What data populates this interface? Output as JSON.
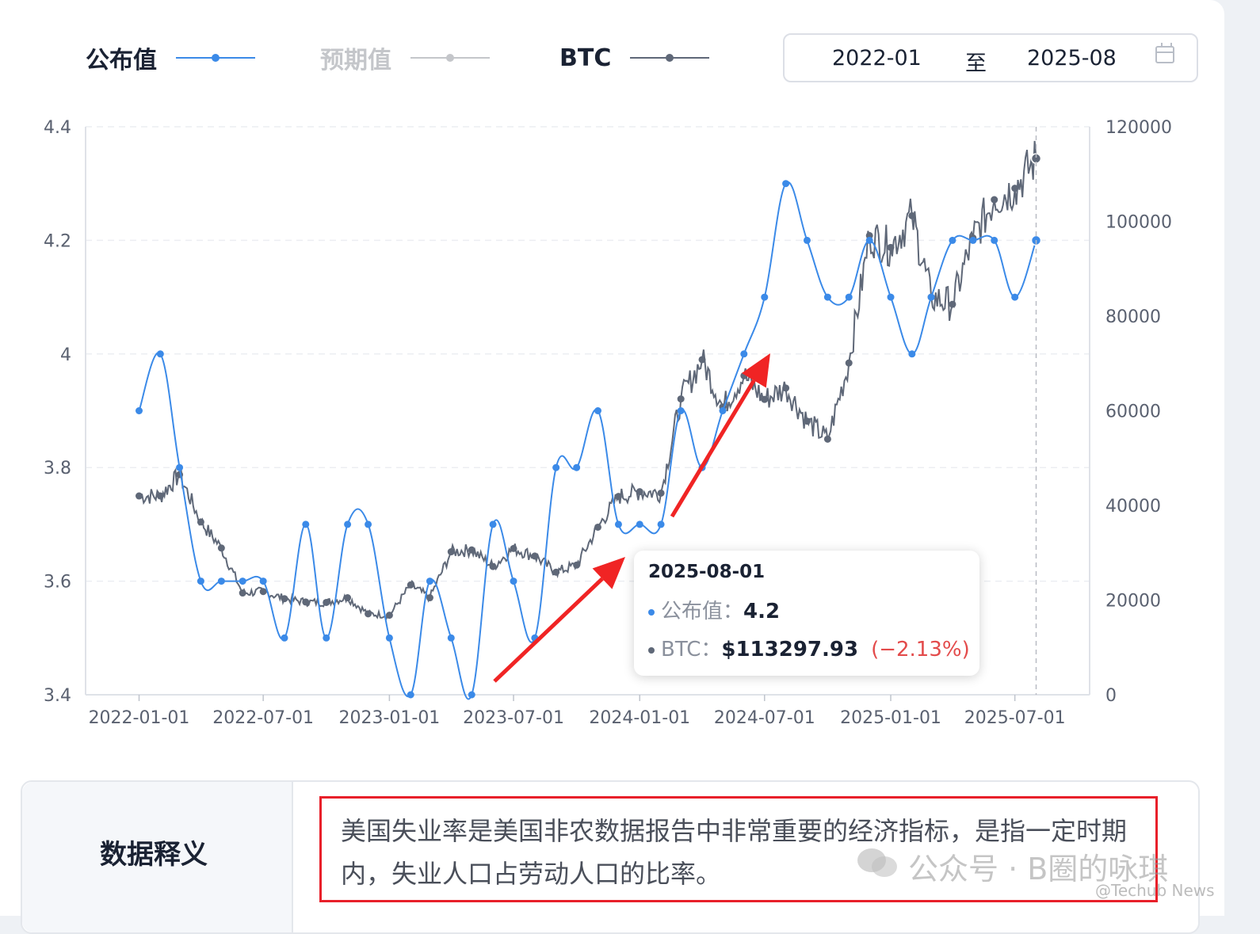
{
  "legend": {
    "published": {
      "label": "公布值",
      "color": "#3b8ae8"
    },
    "expected": {
      "label": "预期值",
      "color": "#c4c6ca"
    },
    "btc": {
      "label": "BTC",
      "color": "#5f6878"
    }
  },
  "date_range": {
    "start": "2022-01",
    "separator": "至",
    "end": "2025-08"
  },
  "chart_data": {
    "type": "line",
    "x_ticks": [
      "2022-01-01",
      "2022-07-01",
      "2023-01-01",
      "2023-07-01",
      "2024-01-01",
      "2024-07-01",
      "2025-01-01",
      "2025-07-01"
    ],
    "y_left": {
      "ticks": [
        "4.4",
        "4.2",
        "4",
        "3.8",
        "3.6",
        "3.4"
      ],
      "range": [
        3.4,
        4.4
      ]
    },
    "y_right": {
      "ticks": [
        "120000",
        "100000",
        "80000",
        "60000",
        "40000",
        "20000",
        "0"
      ],
      "range": [
        0,
        120000
      ]
    },
    "series": [
      {
        "name": "公布值",
        "axis": "left",
        "points": [
          [
            "2022-01-01",
            3.9
          ],
          [
            "2022-02-01",
            4.0
          ],
          [
            "2022-03-01",
            3.8
          ],
          [
            "2022-04-01",
            3.6
          ],
          [
            "2022-05-01",
            3.6
          ],
          [
            "2022-06-01",
            3.6
          ],
          [
            "2022-07-01",
            3.6
          ],
          [
            "2022-08-01",
            3.5
          ],
          [
            "2022-09-01",
            3.7
          ],
          [
            "2022-10-01",
            3.5
          ],
          [
            "2022-11-01",
            3.7
          ],
          [
            "2022-12-01",
            3.7
          ],
          [
            "2023-01-01",
            3.5
          ],
          [
            "2023-02-01",
            3.4
          ],
          [
            "2023-03-01",
            3.6
          ],
          [
            "2023-04-01",
            3.5
          ],
          [
            "2023-05-01",
            3.4
          ],
          [
            "2023-06-01",
            3.7
          ],
          [
            "2023-07-01",
            3.6
          ],
          [
            "2023-08-01",
            3.5
          ],
          [
            "2023-09-01",
            3.8
          ],
          [
            "2023-10-01",
            3.8
          ],
          [
            "2023-11-01",
            3.9
          ],
          [
            "2023-12-01",
            3.7
          ],
          [
            "2024-01-01",
            3.7
          ],
          [
            "2024-02-01",
            3.7
          ],
          [
            "2024-03-01",
            3.9
          ],
          [
            "2024-04-01",
            3.8
          ],
          [
            "2024-05-01",
            3.9
          ],
          [
            "2024-06-01",
            4.0
          ],
          [
            "2024-07-01",
            4.1
          ],
          [
            "2024-08-01",
            4.3
          ],
          [
            "2024-09-01",
            4.2
          ],
          [
            "2024-10-01",
            4.1
          ],
          [
            "2024-11-01",
            4.1
          ],
          [
            "2024-12-01",
            4.2
          ],
          [
            "2025-01-01",
            4.1
          ],
          [
            "2025-02-01",
            4.0
          ],
          [
            "2025-03-01",
            4.1
          ],
          [
            "2025-04-01",
            4.2
          ],
          [
            "2025-05-01",
            4.2
          ],
          [
            "2025-06-01",
            4.2
          ],
          [
            "2025-07-01",
            4.1
          ],
          [
            "2025-08-01",
            4.2
          ]
        ]
      },
      {
        "name": "BTC",
        "axis": "right",
        "points": [
          [
            "2022-01-01",
            42000
          ],
          [
            "2022-02-01",
            42000
          ],
          [
            "2022-03-01",
            46500
          ],
          [
            "2022-04-01",
            36500
          ],
          [
            "2022-05-01",
            31000
          ],
          [
            "2022-06-01",
            21500
          ],
          [
            "2022-07-01",
            21800
          ],
          [
            "2022-08-01",
            20300
          ],
          [
            "2022-09-01",
            19600
          ],
          [
            "2022-10-01",
            19500
          ],
          [
            "2022-11-01",
            20500
          ],
          [
            "2022-12-01",
            17100
          ],
          [
            "2023-01-01",
            16800
          ],
          [
            "2023-02-01",
            23200
          ],
          [
            "2023-03-01",
            20500
          ],
          [
            "2023-04-01",
            30200
          ],
          [
            "2023-05-01",
            30600
          ],
          [
            "2023-06-01",
            27100
          ],
          [
            "2023-07-01",
            30900
          ],
          [
            "2023-08-01",
            29300
          ],
          [
            "2023-09-01",
            25900
          ],
          [
            "2023-10-01",
            27400
          ],
          [
            "2023-11-01",
            35400
          ],
          [
            "2023-12-01",
            41900
          ],
          [
            "2024-01-01",
            42900
          ],
          [
            "2024-02-01",
            42600
          ],
          [
            "2024-03-01",
            62500
          ],
          [
            "2024-04-01",
            70800
          ],
          [
            "2024-05-01",
            60800
          ],
          [
            "2024-06-01",
            67400
          ],
          [
            "2024-07-01",
            62400
          ],
          [
            "2024-08-01",
            64800
          ],
          [
            "2024-09-01",
            57800
          ],
          [
            "2024-10-01",
            54000
          ],
          [
            "2024-11-01",
            70100
          ],
          [
            "2024-12-01",
            97000
          ],
          [
            "2025-01-01",
            94500
          ],
          [
            "2025-02-01",
            101200
          ],
          [
            "2025-03-01",
            84000
          ],
          [
            "2025-04-01",
            82500
          ],
          [
            "2025-05-01",
            96500
          ],
          [
            "2025-06-01",
            104600
          ],
          [
            "2025-07-01",
            107000
          ],
          [
            "2025-08-01",
            113297.93
          ]
        ]
      }
    ]
  },
  "tooltip": {
    "date": "2025-08-01",
    "published_label": "公布值：",
    "published_value": "4.2",
    "btc_label": "BTC：",
    "btc_value": "$113297.93",
    "btc_change": "(−2.13%)"
  },
  "explanation": {
    "title": "数据释义",
    "text": "美国失业率是美国非农数据报告中非常重要的经济指标，是指一定时期内，失业人口占劳动人口的比率。"
  },
  "watermark": {
    "main": "公众号 · B圈的咏琪",
    "sub": "@Techub News"
  }
}
